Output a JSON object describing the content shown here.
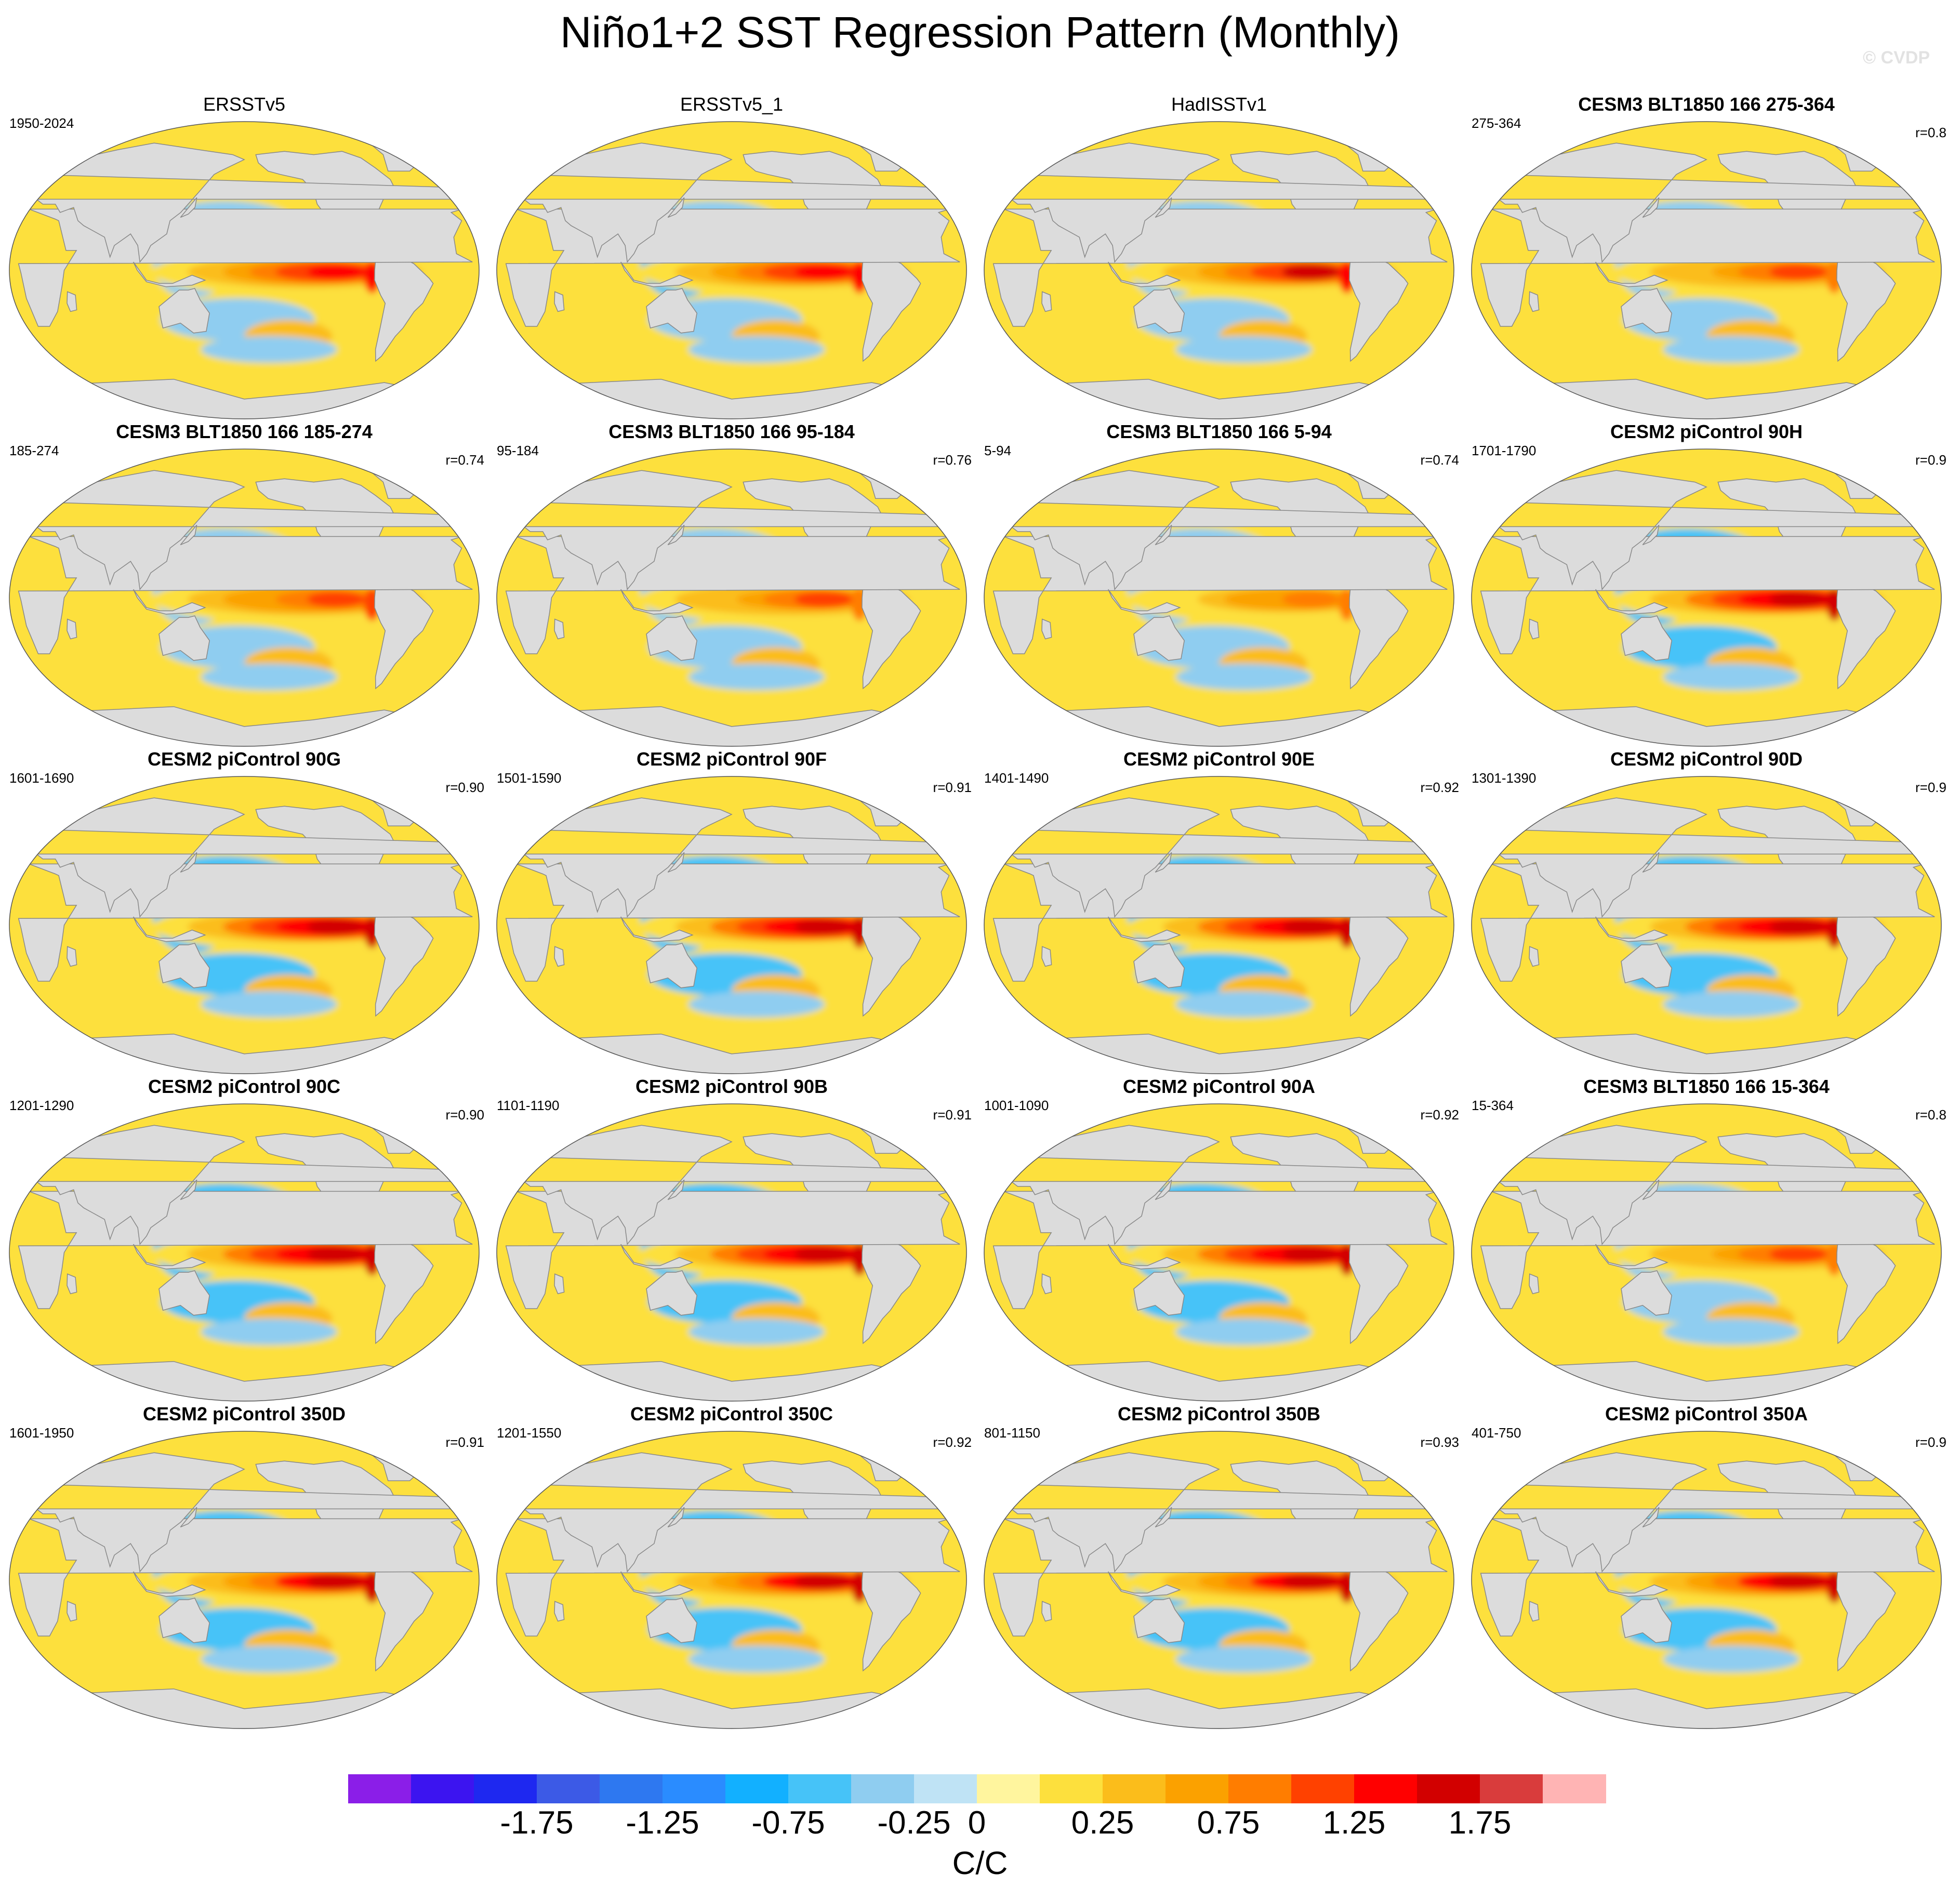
{
  "title": "Niño1+2 SST Regression Pattern (Monthly)",
  "credit": "© CVDP",
  "chart_data": {
    "type": "heatmap",
    "description_units": "C/C",
    "panels": [
      {
        "title": "ERSSTv5",
        "period": "1950-2024",
        "corr": "",
        "obs": true,
        "strength": 0.85,
        "warm_pool_cold": 0.35
      },
      {
        "title": "ERSSTv5_1",
        "period": "",
        "corr": "",
        "obs": true,
        "strength": 0.85,
        "warm_pool_cold": 0.4
      },
      {
        "title": "HadISSTv1",
        "period": "",
        "corr": "",
        "obs": true,
        "strength": 0.9,
        "warm_pool_cold": 0.35
      },
      {
        "title": "CESM3 BLT1850 166 275-364",
        "period": "275-364",
        "corr": "r=0.8",
        "obs": false,
        "strength": 0.6,
        "warm_pool_cold": 0.3
      },
      {
        "title": "CESM3 BLT1850 166 185-274",
        "period": "185-274",
        "corr": "r=0.74",
        "obs": false,
        "strength": 0.7,
        "warm_pool_cold": 0.35
      },
      {
        "title": "CESM3 BLT1850 166 95-184",
        "period": "95-184",
        "corr": "r=0.76",
        "obs": false,
        "strength": 0.6,
        "warm_pool_cold": 0.3
      },
      {
        "title": "CESM3 BLT1850 166 5-94",
        "period": "5-94",
        "corr": "r=0.74",
        "obs": false,
        "strength": 0.55,
        "warm_pool_cold": 0.3
      },
      {
        "title": "CESM2 piControl 90H",
        "period": "1701-1790",
        "corr": "r=0.9",
        "obs": false,
        "strength": 1.0,
        "warm_pool_cold": 0.6
      },
      {
        "title": "CESM2 piControl 90G",
        "period": "1601-1690",
        "corr": "r=0.90",
        "obs": false,
        "strength": 1.0,
        "warm_pool_cold": 0.65
      },
      {
        "title": "CESM2 piControl 90F",
        "period": "1501-1590",
        "corr": "r=0.91",
        "obs": false,
        "strength": 1.0,
        "warm_pool_cold": 0.65
      },
      {
        "title": "CESM2 piControl 90E",
        "period": "1401-1490",
        "corr": "r=0.92",
        "obs": false,
        "strength": 1.0,
        "warm_pool_cold": 0.65
      },
      {
        "title": "CESM2 piControl 90D",
        "period": "1301-1390",
        "corr": "r=0.9",
        "obs": false,
        "strength": 1.0,
        "warm_pool_cold": 0.65
      },
      {
        "title": "CESM2 piControl 90C",
        "period": "1201-1290",
        "corr": "r=0.90",
        "obs": false,
        "strength": 1.0,
        "warm_pool_cold": 0.65
      },
      {
        "title": "CESM2 piControl 90B",
        "period": "1101-1190",
        "corr": "r=0.91",
        "obs": false,
        "strength": 1.0,
        "warm_pool_cold": 0.65
      },
      {
        "title": "CESM2 piControl 90A",
        "period": "1001-1090",
        "corr": "r=0.92",
        "obs": false,
        "strength": 1.0,
        "warm_pool_cold": 0.65
      },
      {
        "title": "CESM3 BLT1850 166 15-364",
        "period": "15-364",
        "corr": "r=0.8",
        "obs": false,
        "strength": 0.6,
        "warm_pool_cold": 0.3
      },
      {
        "title": "CESM2 piControl 350D",
        "period": "1601-1950",
        "corr": "r=0.91",
        "obs": false,
        "strength": 0.95,
        "warm_pool_cold": 0.65
      },
      {
        "title": "CESM2 piControl 350C",
        "period": "1201-1550",
        "corr": "r=0.92",
        "obs": false,
        "strength": 0.95,
        "warm_pool_cold": 0.65
      },
      {
        "title": "CESM2 piControl 350B",
        "period": "801-1150",
        "corr": "r=0.93",
        "obs": false,
        "strength": 0.95,
        "warm_pool_cold": 0.65
      },
      {
        "title": "CESM2 piControl 350A",
        "period": "401-750",
        "corr": "r=0.9",
        "obs": false,
        "strength": 0.95,
        "warm_pool_cold": 0.65
      }
    ],
    "colorbar": {
      "colors": [
        "#8b1ee8",
        "#3c14f0",
        "#1e28f0",
        "#3c5ae6",
        "#2e78f0",
        "#2a8cff",
        "#12b0ff",
        "#46c3f8",
        "#8fcdf0",
        "#bfe3f5",
        "#fff59e",
        "#fde03d",
        "#fbbd1b",
        "#fba100",
        "#ff7d00",
        "#ff4100",
        "#ff0000",
        "#d20000",
        "#d93c3c",
        "#ffb4b4"
      ],
      "labels": [
        "-1.75",
        "-1.25",
        "-0.75",
        "-0.25",
        "0",
        "0.25",
        "0.75",
        "1.25",
        "1.75"
      ],
      "label_levels": [
        -1.75,
        -1.25,
        -0.75,
        -0.25,
        0,
        0.25,
        0.75,
        1.25,
        1.75
      ],
      "levels": [
        -2.0,
        -1.75,
        -1.5,
        -1.25,
        -1.0,
        -0.75,
        -0.5,
        -0.25,
        -0.1,
        0,
        0.1,
        0.25,
        0.5,
        0.75,
        1.0,
        1.25,
        1.5,
        1.75,
        2.0
      ],
      "units": "C/C"
    },
    "map": {
      "projection": "Robinson",
      "central_longitude": 180,
      "land_color": "#dcdcdc",
      "coast_color": "#888888"
    }
  }
}
